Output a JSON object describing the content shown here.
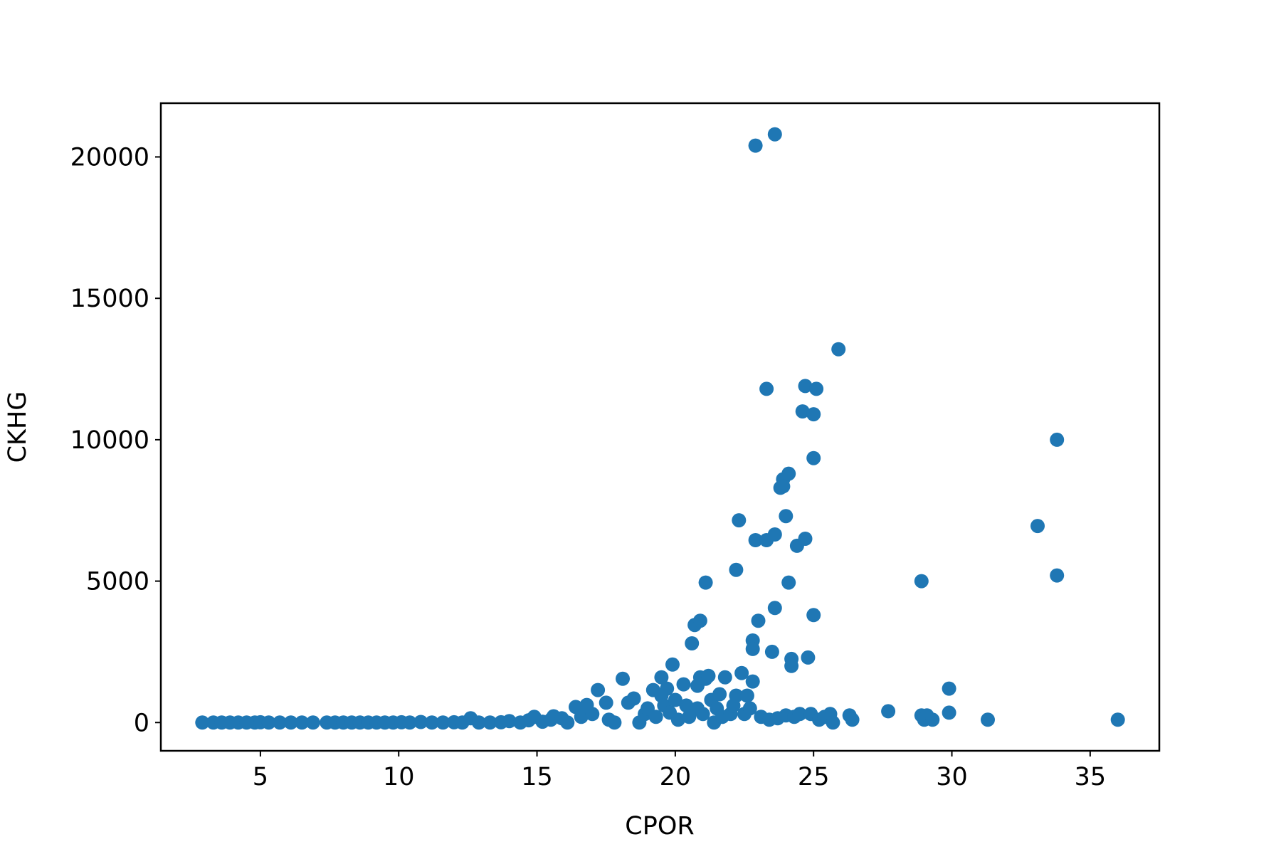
{
  "chart_data": {
    "type": "scatter",
    "xlabel": "CPOR",
    "ylabel": "CKHG",
    "xlim": [
      1.4,
      37.5
    ],
    "ylim": [
      -1000,
      21900
    ],
    "xticks": [
      5,
      10,
      15,
      20,
      25,
      30,
      35
    ],
    "yticks": [
      0,
      5000,
      10000,
      15000,
      20000
    ],
    "grid": false,
    "marker_color": "#1f77b4",
    "series": [
      {
        "points": [
          [
            2.9,
            0
          ],
          [
            3.3,
            0
          ],
          [
            3.6,
            0
          ],
          [
            3.9,
            0
          ],
          [
            4.2,
            0
          ],
          [
            4.5,
            0
          ],
          [
            4.8,
            0
          ],
          [
            5.0,
            10
          ],
          [
            5.3,
            0
          ],
          [
            5.7,
            0
          ],
          [
            6.1,
            0
          ],
          [
            6.5,
            0
          ],
          [
            6.9,
            0
          ],
          [
            7.4,
            0
          ],
          [
            7.7,
            0
          ],
          [
            8.0,
            0
          ],
          [
            8.3,
            0
          ],
          [
            8.6,
            0
          ],
          [
            8.9,
            0
          ],
          [
            9.2,
            0
          ],
          [
            9.5,
            0
          ],
          [
            9.8,
            0
          ],
          [
            10.1,
            10
          ],
          [
            10.4,
            0
          ],
          [
            10.8,
            20
          ],
          [
            11.2,
            0
          ],
          [
            11.6,
            0
          ],
          [
            12.0,
            10
          ],
          [
            12.3,
            0
          ],
          [
            12.6,
            150
          ],
          [
            12.9,
            0
          ],
          [
            13.3,
            0
          ],
          [
            13.7,
            10
          ],
          [
            14.0,
            50
          ],
          [
            14.4,
            0
          ],
          [
            14.7,
            80
          ],
          [
            14.9,
            200
          ],
          [
            15.2,
            30
          ],
          [
            15.5,
            100
          ],
          [
            15.6,
            220
          ],
          [
            15.9,
            150
          ],
          [
            16.1,
            0
          ],
          [
            16.4,
            550
          ],
          [
            16.6,
            200
          ],
          [
            16.8,
            620
          ],
          [
            17.0,
            300
          ],
          [
            17.2,
            1150
          ],
          [
            17.5,
            700
          ],
          [
            17.6,
            100
          ],
          [
            17.8,
            0
          ],
          [
            18.1,
            1550
          ],
          [
            18.3,
            700
          ],
          [
            18.5,
            850
          ],
          [
            18.7,
            0
          ],
          [
            18.9,
            300
          ],
          [
            19.0,
            500
          ],
          [
            19.2,
            1150
          ],
          [
            19.3,
            200
          ],
          [
            19.5,
            1600
          ],
          [
            19.5,
            950
          ],
          [
            19.6,
            600
          ],
          [
            19.7,
            1200
          ],
          [
            19.8,
            350
          ],
          [
            19.9,
            2050
          ],
          [
            20.0,
            800
          ],
          [
            20.1,
            100
          ],
          [
            20.3,
            1350
          ],
          [
            20.4,
            600
          ],
          [
            20.5,
            200
          ],
          [
            20.6,
            2800
          ],
          [
            20.7,
            3450
          ],
          [
            20.8,
            1300
          ],
          [
            20.8,
            500
          ],
          [
            20.9,
            3600
          ],
          [
            20.9,
            1600
          ],
          [
            21.0,
            300
          ],
          [
            21.1,
            4950
          ],
          [
            21.1,
            1550
          ],
          [
            21.2,
            1650
          ],
          [
            21.3,
            800
          ],
          [
            21.4,
            0
          ],
          [
            21.5,
            500
          ],
          [
            21.6,
            1000
          ],
          [
            21.7,
            200
          ],
          [
            21.8,
            1600
          ],
          [
            22.0,
            300
          ],
          [
            22.1,
            600
          ],
          [
            22.2,
            5400
          ],
          [
            22.2,
            950
          ],
          [
            22.3,
            7150
          ],
          [
            22.4,
            1750
          ],
          [
            22.5,
            300
          ],
          [
            22.6,
            950
          ],
          [
            22.7,
            500
          ],
          [
            22.8,
            1450
          ],
          [
            22.8,
            2900
          ],
          [
            22.8,
            2600
          ],
          [
            22.9,
            20400
          ],
          [
            22.9,
            6450
          ],
          [
            23.0,
            3600
          ],
          [
            23.1,
            200
          ],
          [
            23.3,
            11800
          ],
          [
            23.3,
            6450
          ],
          [
            23.4,
            100
          ],
          [
            23.5,
            2500
          ],
          [
            23.6,
            20800
          ],
          [
            23.6,
            6650
          ],
          [
            23.6,
            4050
          ],
          [
            23.7,
            150
          ],
          [
            23.8,
            8300
          ],
          [
            23.9,
            8600
          ],
          [
            23.9,
            8350
          ],
          [
            24.0,
            7300
          ],
          [
            24.0,
            250
          ],
          [
            24.1,
            8800
          ],
          [
            24.1,
            4950
          ],
          [
            24.2,
            2250
          ],
          [
            24.2,
            2000
          ],
          [
            24.3,
            200
          ],
          [
            24.4,
            6250
          ],
          [
            24.5,
            300
          ],
          [
            24.6,
            11000
          ],
          [
            24.7,
            11900
          ],
          [
            24.7,
            6500
          ],
          [
            24.8,
            2300
          ],
          [
            24.9,
            300
          ],
          [
            25.0,
            10900
          ],
          [
            25.0,
            9350
          ],
          [
            25.0,
            3800
          ],
          [
            25.1,
            11800
          ],
          [
            25.2,
            100
          ],
          [
            25.4,
            200
          ],
          [
            25.6,
            300
          ],
          [
            25.7,
            0
          ],
          [
            25.9,
            13200
          ],
          [
            26.3,
            250
          ],
          [
            26.4,
            100
          ],
          [
            27.7,
            400
          ],
          [
            28.9,
            5000
          ],
          [
            28.9,
            250
          ],
          [
            29.0,
            100
          ],
          [
            29.1,
            250
          ],
          [
            29.3,
            100
          ],
          [
            29.9,
            1200
          ],
          [
            29.9,
            350
          ],
          [
            31.3,
            100
          ],
          [
            33.1,
            6950
          ],
          [
            33.8,
            10000
          ],
          [
            33.8,
            5200
          ],
          [
            36.0,
            100
          ]
        ]
      }
    ]
  }
}
